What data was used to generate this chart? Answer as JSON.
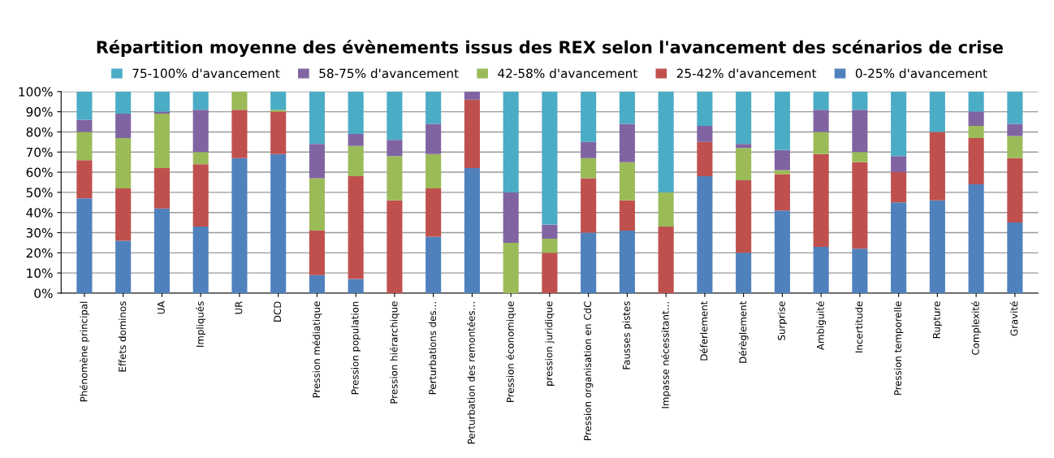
{
  "chart_data": {
    "type": "bar",
    "stacked": true,
    "title": "Répartition moyenne des évènements issus des REX selon l'avancement des scénarios de crise",
    "categories": [
      "Phénomène principal",
      "Effets dominos",
      "UA",
      "Impliqués",
      "UR",
      "DCD",
      "Pression médiatique",
      "Pression population",
      "Pression hiérarchique",
      "Perturbations des…",
      "Perturbation des remontées…",
      "Pression économique",
      "pression juridique",
      "Pression organisation en CdC",
      "Fausses pistes",
      "Impasse nécessitant…",
      "Déferlement",
      "Dérèglement",
      "Surprise",
      "Ambiguité",
      "Incertitude",
      "Pression temporelle",
      "Rupture",
      "Complexité",
      "Gravité"
    ],
    "series": [
      {
        "name": "0-25% d'avancement",
        "color": "#4f81bd",
        "values": [
          47,
          26,
          42,
          33,
          67,
          69,
          9,
          7,
          0,
          28,
          62,
          0,
          0,
          30,
          31,
          0,
          58,
          20,
          41,
          23,
          22,
          45,
          46,
          54,
          35
        ]
      },
      {
        "name": "25-42% d'avancement",
        "color": "#c0504d",
        "values": [
          19,
          26,
          20,
          31,
          24,
          21,
          22,
          51,
          46,
          24,
          34,
          0,
          20,
          27,
          15,
          33,
          17,
          36,
          18,
          46,
          43,
          15,
          34,
          23,
          32
        ]
      },
      {
        "name": "42-58% d'avancement",
        "color": "#9bbb59",
        "values": [
          14,
          25,
          27,
          6,
          9,
          1,
          26,
          15,
          22,
          17,
          0,
          25,
          7,
          10,
          19,
          17,
          0,
          16,
          2,
          11,
          5,
          0,
          0,
          6,
          11
        ]
      },
      {
        "name": "58-75% d'avancement",
        "color": "#8064a2",
        "values": [
          6,
          12,
          1,
          21,
          0,
          0,
          17,
          6,
          8,
          15,
          4,
          25,
          7,
          8,
          19,
          0,
          8,
          2,
          10,
          11,
          21,
          8,
          0,
          7,
          6
        ]
      },
      {
        "name": "75-100% d'avancement",
        "color": "#4bacc6",
        "values": [
          14,
          11,
          10,
          9,
          0,
          9,
          26,
          21,
          24,
          16,
          0,
          50,
          66,
          25,
          16,
          50,
          17,
          26,
          29,
          9,
          9,
          32,
          20,
          10,
          16
        ]
      }
    ],
    "ylim": [
      0,
      100
    ],
    "yticks": [
      {
        "value": 0,
        "label": "0%"
      },
      {
        "value": 10,
        "label": "10%"
      },
      {
        "value": 20,
        "label": "20%"
      },
      {
        "value": 30,
        "label": "30%"
      },
      {
        "value": 40,
        "label": "40%"
      },
      {
        "value": 50,
        "label": "50%"
      },
      {
        "value": 60,
        "label": "60%"
      },
      {
        "value": 70,
        "label": "70%"
      },
      {
        "value": 80,
        "label": "80%"
      },
      {
        "value": 90,
        "label": "90%"
      },
      {
        "value": 100,
        "label": "100%"
      }
    ],
    "grid": "y",
    "legend": "top"
  }
}
